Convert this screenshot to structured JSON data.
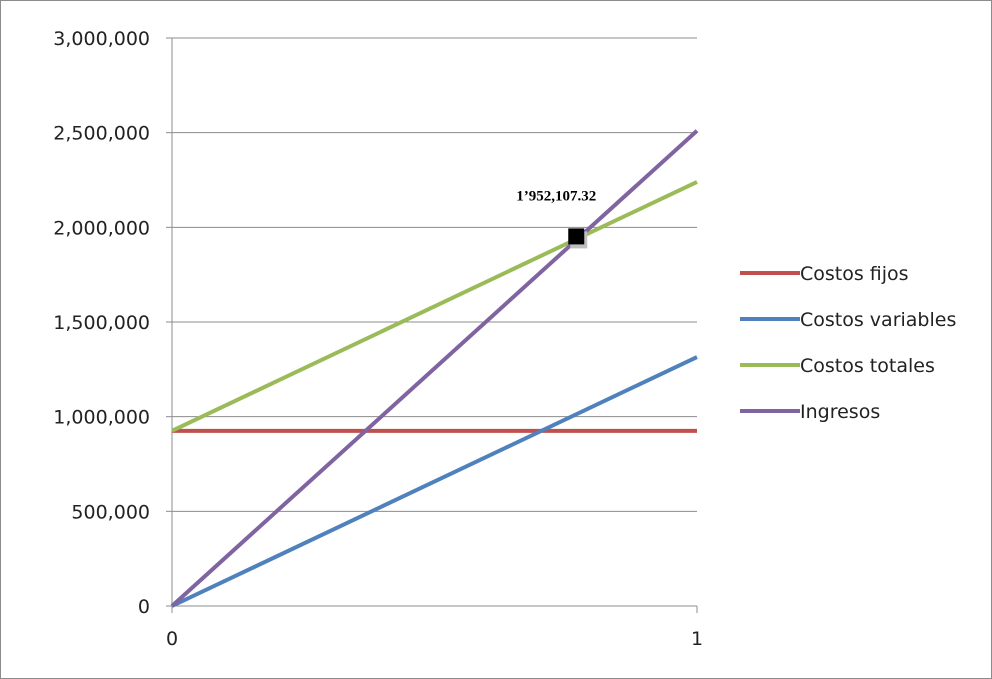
{
  "chart_data": {
    "type": "line",
    "x": [
      0,
      1
    ],
    "xlim": [
      0,
      1
    ],
    "x_ticks": [
      "0",
      "1"
    ],
    "ylim": [
      0,
      3000000
    ],
    "y_ticks": [
      "0",
      "500,000",
      "1,000,000",
      "1,500,000",
      "2,000,000",
      "2,500,000",
      "3,000,000"
    ],
    "y_tick_values": [
      0,
      500000,
      1000000,
      1500000,
      2000000,
      2500000,
      3000000
    ],
    "grid": true,
    "legend_position": "right",
    "series": [
      {
        "name": "Costos fijos",
        "color": "#C0504D",
        "values": [
          925000,
          925000
        ]
      },
      {
        "name": "Costos variables",
        "color": "#4F81BD",
        "values": [
          0,
          1315000
        ]
      },
      {
        "name": "Costos totales",
        "color": "#9BBB59",
        "values": [
          925000,
          2240000
        ]
      },
      {
        "name": "Ingresos",
        "color": "#8064A2",
        "values": [
          0,
          2510000
        ]
      }
    ],
    "annotation": {
      "text": "1’952,107.32",
      "x": 0.77,
      "y": 1952107.32,
      "marker_color": "#000000"
    }
  }
}
